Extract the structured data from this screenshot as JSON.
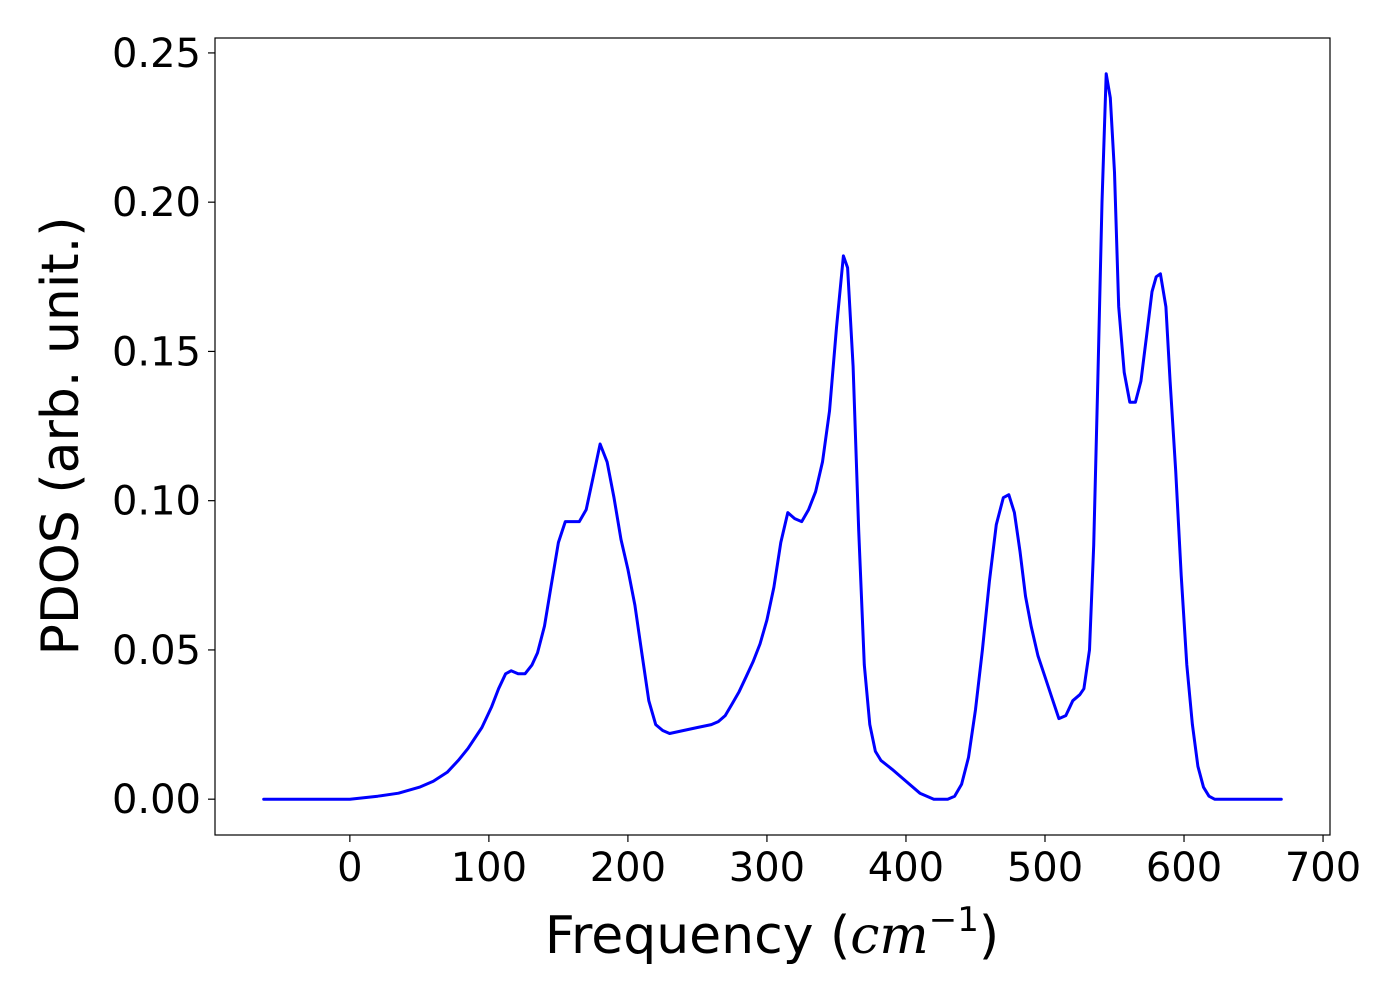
{
  "chart_data": {
    "type": "line",
    "title": "",
    "xlabel": "Frequency (",
    "xlabel_math": "cm",
    "xlabel_sup": "−1",
    "xlabel_close": ")",
    "ylabel": "PDOS (arb. unit.)",
    "xlim": [
      -97,
      705
    ],
    "ylim": [
      -0.012,
      0.255
    ],
    "xticks": [
      0,
      100,
      200,
      300,
      400,
      500,
      600,
      700
    ],
    "xtick_labels": [
      "0",
      "100",
      "200",
      "300",
      "400",
      "500",
      "600",
      "700"
    ],
    "yticks": [
      0.0,
      0.05,
      0.1,
      0.15,
      0.2,
      0.25
    ],
    "ytick_labels": [
      "0.00",
      "0.05",
      "0.10",
      "0.15",
      "0.20",
      "0.25"
    ],
    "grid": false,
    "legend": "none",
    "series": [
      {
        "color": "#0000ff",
        "x": [
          -62,
          0,
          10,
          20,
          35,
          50,
          60,
          70,
          78,
          85,
          95,
          102,
          107,
          112,
          116,
          121,
          126,
          131,
          135,
          140,
          145,
          150,
          155,
          160,
          165,
          170,
          175,
          180,
          185,
          190,
          195,
          200,
          205,
          210,
          215,
          220,
          225,
          230,
          240,
          250,
          260,
          265,
          270,
          275,
          280,
          285,
          290,
          295,
          300,
          305,
          310,
          315,
          320,
          325,
          330,
          335,
          340,
          345,
          350,
          355,
          358,
          362,
          366,
          370,
          374,
          378,
          382,
          390,
          400,
          410,
          420,
          430,
          435,
          440,
          445,
          450,
          455,
          460,
          465,
          470,
          474,
          478,
          482,
          486,
          490,
          495,
          500,
          505,
          510,
          515,
          520,
          525,
          528,
          532,
          535,
          538,
          541,
          544,
          547,
          550,
          553,
          557,
          561,
          565,
          569,
          573,
          577,
          580,
          583,
          587,
          590,
          594,
          598,
          602,
          606,
          610,
          614,
          618,
          622,
          626,
          630,
          640,
          650,
          660,
          670
        ],
        "y": [
          0.0,
          0.0,
          0.0005,
          0.001,
          0.002,
          0.004,
          0.006,
          0.009,
          0.013,
          0.017,
          0.024,
          0.031,
          0.037,
          0.042,
          0.043,
          0.042,
          0.042,
          0.045,
          0.049,
          0.058,
          0.072,
          0.086,
          0.093,
          0.093,
          0.093,
          0.097,
          0.108,
          0.119,
          0.113,
          0.101,
          0.087,
          0.077,
          0.065,
          0.049,
          0.033,
          0.025,
          0.023,
          0.022,
          0.023,
          0.024,
          0.025,
          0.026,
          0.028,
          0.032,
          0.036,
          0.041,
          0.046,
          0.052,
          0.06,
          0.071,
          0.086,
          0.096,
          0.094,
          0.093,
          0.097,
          0.103,
          0.113,
          0.13,
          0.158,
          0.182,
          0.178,
          0.145,
          0.09,
          0.045,
          0.025,
          0.016,
          0.013,
          0.01,
          0.006,
          0.002,
          0.0,
          0.0,
          0.001,
          0.005,
          0.014,
          0.03,
          0.05,
          0.073,
          0.092,
          0.101,
          0.102,
          0.096,
          0.083,
          0.068,
          0.058,
          0.048,
          0.041,
          0.034,
          0.027,
          0.028,
          0.033,
          0.035,
          0.037,
          0.05,
          0.085,
          0.14,
          0.2,
          0.243,
          0.235,
          0.21,
          0.165,
          0.143,
          0.133,
          0.133,
          0.14,
          0.155,
          0.17,
          0.175,
          0.176,
          0.165,
          0.14,
          0.11,
          0.075,
          0.045,
          0.025,
          0.011,
          0.004,
          0.001,
          0.0,
          0.0,
          0.0,
          0.0,
          0.0,
          0.0,
          0.0
        ]
      }
    ]
  }
}
